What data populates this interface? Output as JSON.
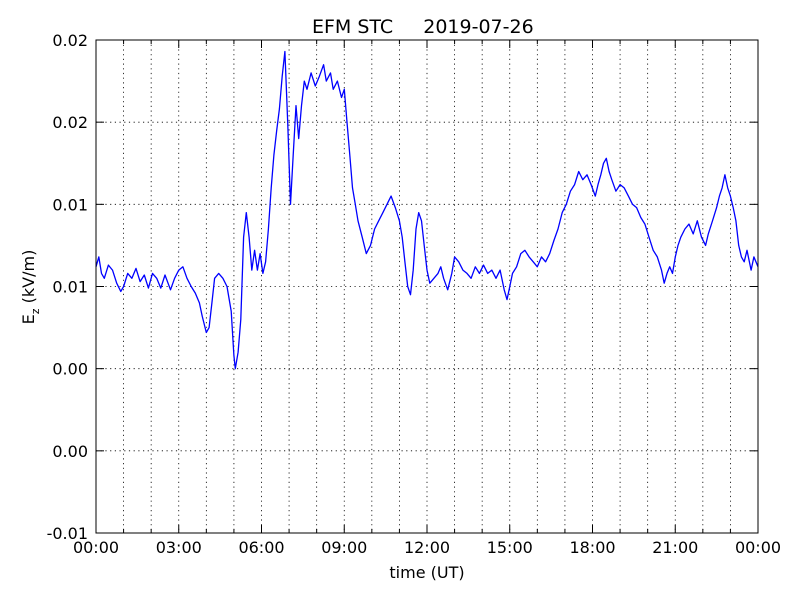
{
  "chart_data": {
    "type": "line",
    "title": "EFM STC",
    "date": "2019-07-26",
    "xlabel": "time (UT)",
    "ylabel_main": "E",
    "ylabel_sub": "z",
    "ylabel_unit": " (kV/m)",
    "x_unit": "hours UT",
    "xlim": [
      0,
      24
    ],
    "x_ticks": [
      0,
      3,
      6,
      9,
      12,
      15,
      18,
      21,
      24
    ],
    "x_tick_labels": [
      "00:00",
      "03:00",
      "06:00",
      "09:00",
      "12:00",
      "15:00",
      "18:00",
      "21:00",
      "00:00"
    ],
    "x_minor_step": 1,
    "ylim": [
      -0.01,
      0.02
    ],
    "y_ticks": [
      -0.01,
      -0.005,
      0.0,
      0.005,
      0.01,
      0.015,
      0.02
    ],
    "y_tick_labels": [
      "-0.01",
      "0.00",
      "0.00",
      "0.01",
      "0.01",
      "0.02",
      "0.02"
    ],
    "grid": true,
    "series": [
      {
        "color": "#0000ff",
        "points": [
          [
            0.0,
            0.0062
          ],
          [
            0.1,
            0.0068
          ],
          [
            0.2,
            0.0058
          ],
          [
            0.3,
            0.0055
          ],
          [
            0.45,
            0.0063
          ],
          [
            0.6,
            0.006
          ],
          [
            0.75,
            0.0052
          ],
          [
            0.9,
            0.0047
          ],
          [
            1.0,
            0.005
          ],
          [
            1.15,
            0.0058
          ],
          [
            1.3,
            0.0055
          ],
          [
            1.45,
            0.0061
          ],
          [
            1.6,
            0.0053
          ],
          [
            1.75,
            0.0057
          ],
          [
            1.9,
            0.0049
          ],
          [
            2.05,
            0.0058
          ],
          [
            2.2,
            0.0055
          ],
          [
            2.35,
            0.0049
          ],
          [
            2.5,
            0.0057
          ],
          [
            2.7,
            0.0048
          ],
          [
            2.85,
            0.0055
          ],
          [
            3.0,
            0.006
          ],
          [
            3.15,
            0.0062
          ],
          [
            3.3,
            0.0055
          ],
          [
            3.45,
            0.005
          ],
          [
            3.6,
            0.0046
          ],
          [
            3.75,
            0.004
          ],
          [
            3.85,
            0.0032
          ],
          [
            4.0,
            0.0022
          ],
          [
            4.1,
            0.0025
          ],
          [
            4.2,
            0.004
          ],
          [
            4.3,
            0.0055
          ],
          [
            4.45,
            0.0058
          ],
          [
            4.6,
            0.0055
          ],
          [
            4.75,
            0.005
          ],
          [
            4.9,
            0.0035
          ],
          [
            5.0,
            0.0008
          ],
          [
            5.05,
            0.0
          ],
          [
            5.15,
            0.001
          ],
          [
            5.25,
            0.003
          ],
          [
            5.35,
            0.008
          ],
          [
            5.45,
            0.0095
          ],
          [
            5.55,
            0.008
          ],
          [
            5.65,
            0.006
          ],
          [
            5.75,
            0.0072
          ],
          [
            5.85,
            0.006
          ],
          [
            5.95,
            0.007
          ],
          [
            6.05,
            0.0058
          ],
          [
            6.15,
            0.0065
          ],
          [
            6.25,
            0.0085
          ],
          [
            6.35,
            0.011
          ],
          [
            6.45,
            0.013
          ],
          [
            6.55,
            0.0145
          ],
          [
            6.65,
            0.0158
          ],
          [
            6.75,
            0.0178
          ],
          [
            6.85,
            0.0193
          ],
          [
            6.95,
            0.015
          ],
          [
            7.05,
            0.01
          ],
          [
            7.15,
            0.013
          ],
          [
            7.25,
            0.016
          ],
          [
            7.35,
            0.014
          ],
          [
            7.45,
            0.016
          ],
          [
            7.55,
            0.0175
          ],
          [
            7.65,
            0.017
          ],
          [
            7.8,
            0.018
          ],
          [
            7.95,
            0.0172
          ],
          [
            8.1,
            0.0178
          ],
          [
            8.25,
            0.0185
          ],
          [
            8.35,
            0.0175
          ],
          [
            8.5,
            0.018
          ],
          [
            8.6,
            0.017
          ],
          [
            8.75,
            0.0175
          ],
          [
            8.9,
            0.0165
          ],
          [
            9.0,
            0.017
          ],
          [
            9.1,
            0.015
          ],
          [
            9.2,
            0.013
          ],
          [
            9.3,
            0.011
          ],
          [
            9.4,
            0.01
          ],
          [
            9.5,
            0.009
          ],
          [
            9.65,
            0.008
          ],
          [
            9.8,
            0.007
          ],
          [
            9.95,
            0.0075
          ],
          [
            10.1,
            0.0085
          ],
          [
            10.25,
            0.009
          ],
          [
            10.4,
            0.0095
          ],
          [
            10.55,
            0.01
          ],
          [
            10.7,
            0.0105
          ],
          [
            10.85,
            0.0098
          ],
          [
            11.0,
            0.009
          ],
          [
            11.1,
            0.008
          ],
          [
            11.2,
            0.0065
          ],
          [
            11.3,
            0.005
          ],
          [
            11.4,
            0.0045
          ],
          [
            11.5,
            0.006
          ],
          [
            11.6,
            0.0085
          ],
          [
            11.7,
            0.0095
          ],
          [
            11.8,
            0.009
          ],
          [
            11.9,
            0.0075
          ],
          [
            12.0,
            0.006
          ],
          [
            12.1,
            0.0052
          ],
          [
            12.25,
            0.0055
          ],
          [
            12.4,
            0.0058
          ],
          [
            12.5,
            0.0062
          ],
          [
            12.6,
            0.0055
          ],
          [
            12.75,
            0.0048
          ],
          [
            12.9,
            0.0058
          ],
          [
            13.0,
            0.0068
          ],
          [
            13.15,
            0.0065
          ],
          [
            13.3,
            0.006
          ],
          [
            13.45,
            0.0058
          ],
          [
            13.6,
            0.0055
          ],
          [
            13.75,
            0.0062
          ],
          [
            13.9,
            0.0058
          ],
          [
            14.05,
            0.0063
          ],
          [
            14.2,
            0.0058
          ],
          [
            14.35,
            0.006
          ],
          [
            14.5,
            0.0055
          ],
          [
            14.65,
            0.006
          ],
          [
            14.8,
            0.0048
          ],
          [
            14.9,
            0.0042
          ],
          [
            15.0,
            0.005
          ],
          [
            15.1,
            0.0058
          ],
          [
            15.25,
            0.0062
          ],
          [
            15.4,
            0.007
          ],
          [
            15.55,
            0.0072
          ],
          [
            15.7,
            0.0068
          ],
          [
            15.85,
            0.0065
          ],
          [
            16.0,
            0.0062
          ],
          [
            16.15,
            0.0068
          ],
          [
            16.3,
            0.0065
          ],
          [
            16.45,
            0.007
          ],
          [
            16.6,
            0.0078
          ],
          [
            16.75,
            0.0085
          ],
          [
            16.9,
            0.0095
          ],
          [
            17.05,
            0.01
          ],
          [
            17.2,
            0.0108
          ],
          [
            17.35,
            0.0112
          ],
          [
            17.5,
            0.012
          ],
          [
            17.65,
            0.0115
          ],
          [
            17.8,
            0.0118
          ],
          [
            17.95,
            0.0112
          ],
          [
            18.1,
            0.0105
          ],
          [
            18.2,
            0.0112
          ],
          [
            18.3,
            0.0118
          ],
          [
            18.4,
            0.0125
          ],
          [
            18.5,
            0.0128
          ],
          [
            18.6,
            0.012
          ],
          [
            18.7,
            0.0115
          ],
          [
            18.85,
            0.0108
          ],
          [
            19.0,
            0.0112
          ],
          [
            19.15,
            0.011
          ],
          [
            19.3,
            0.0105
          ],
          [
            19.45,
            0.01
          ],
          [
            19.6,
            0.0098
          ],
          [
            19.75,
            0.0092
          ],
          [
            19.9,
            0.0088
          ],
          [
            20.05,
            0.008
          ],
          [
            20.2,
            0.0072
          ],
          [
            20.35,
            0.0068
          ],
          [
            20.5,
            0.006
          ],
          [
            20.6,
            0.0052
          ],
          [
            20.7,
            0.0058
          ],
          [
            20.8,
            0.0062
          ],
          [
            20.9,
            0.0058
          ],
          [
            21.0,
            0.0068
          ],
          [
            21.1,
            0.0075
          ],
          [
            21.2,
            0.008
          ],
          [
            21.35,
            0.0085
          ],
          [
            21.5,
            0.0088
          ],
          [
            21.65,
            0.0082
          ],
          [
            21.8,
            0.009
          ],
          [
            21.95,
            0.008
          ],
          [
            22.1,
            0.0075
          ],
          [
            22.2,
            0.0082
          ],
          [
            22.35,
            0.009
          ],
          [
            22.5,
            0.0098
          ],
          [
            22.6,
            0.0105
          ],
          [
            22.7,
            0.011
          ],
          [
            22.8,
            0.0118
          ],
          [
            22.9,
            0.011
          ],
          [
            23.0,
            0.0105
          ],
          [
            23.1,
            0.0098
          ],
          [
            23.2,
            0.009
          ],
          [
            23.3,
            0.0075
          ],
          [
            23.4,
            0.0068
          ],
          [
            23.5,
            0.0065
          ],
          [
            23.6,
            0.0072
          ],
          [
            23.75,
            0.006
          ],
          [
            23.85,
            0.0068
          ],
          [
            24.0,
            0.0062
          ]
        ]
      }
    ]
  }
}
